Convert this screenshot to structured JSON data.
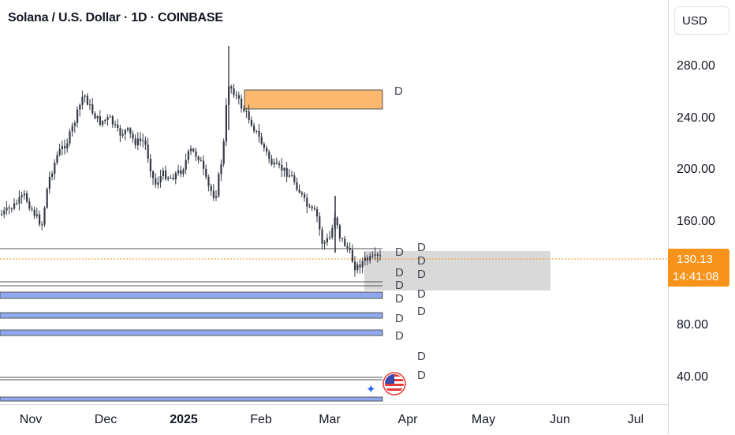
{
  "header": {
    "title": "Solana / U.S. Dollar · 1D · COINBASE"
  },
  "price_scale": {
    "currency_label": "USD",
    "ticks": [
      "280.00",
      "240.00",
      "200.00",
      "160.00",
      "80.00",
      "40.00"
    ],
    "current_price": "130.13",
    "countdown": "14:41:08"
  },
  "time_axis": {
    "ticks": [
      "Nov",
      "Dec",
      "2025",
      "Feb",
      "Mar",
      "Apr",
      "May",
      "Jun",
      "Jul"
    ]
  },
  "drawing_labels": {
    "d": "D"
  },
  "colors": {
    "orange_zone": "#ffb870",
    "gray_zone": "#d9d9d9",
    "blue_zone": "#8fa9f0",
    "price_line": "#f7931a",
    "candle": "#363a45"
  },
  "icons": [
    "usa-flag-icon",
    "sparkle-icon"
  ]
}
